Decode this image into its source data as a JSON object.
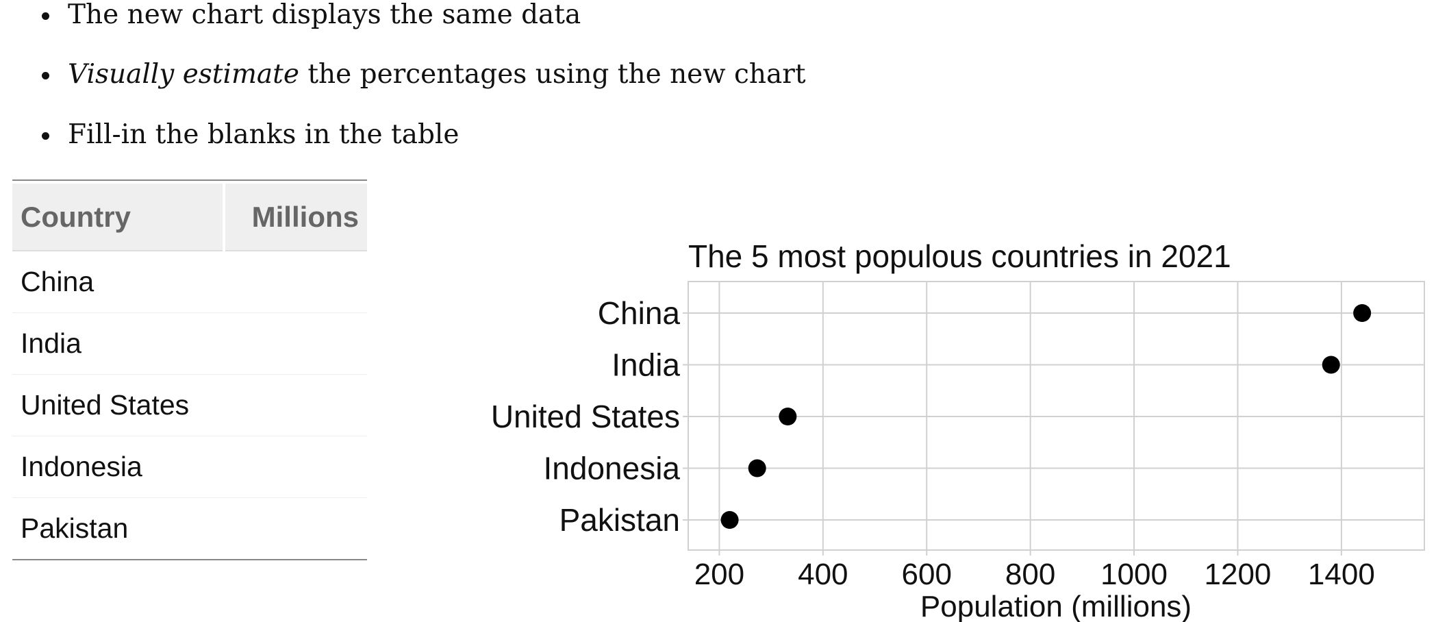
{
  "bullets": {
    "item1": "The new chart displays the same data",
    "item2_italic": "Visually estimate",
    "item2_rest": " the percentages using the new chart",
    "item3": "Fill-in the blanks in the table"
  },
  "table": {
    "headers": [
      "Country",
      "Millions"
    ],
    "rows": [
      {
        "country": "China",
        "millions": ""
      },
      {
        "country": "India",
        "millions": ""
      },
      {
        "country": "United States",
        "millions": ""
      },
      {
        "country": "Indonesia",
        "millions": ""
      },
      {
        "country": "Pakistan",
        "millions": ""
      }
    ]
  },
  "chart_data": {
    "type": "scatter",
    "title": "The 5 most populous countries in 2021",
    "xlabel": "Population (millions)",
    "ylabel": "",
    "categories": [
      "China",
      "India",
      "United States",
      "Indonesia",
      "Pakistan"
    ],
    "values": [
      1440,
      1380,
      332,
      273,
      220
    ],
    "xlim": [
      140,
      1560
    ],
    "xticks": [
      200,
      400,
      600,
      800,
      1000,
      1200,
      1400
    ],
    "grid": true,
    "colors": {
      "point": "#000000",
      "grid": "#d0d0d0",
      "panel_border": "#d0d0d0"
    }
  }
}
